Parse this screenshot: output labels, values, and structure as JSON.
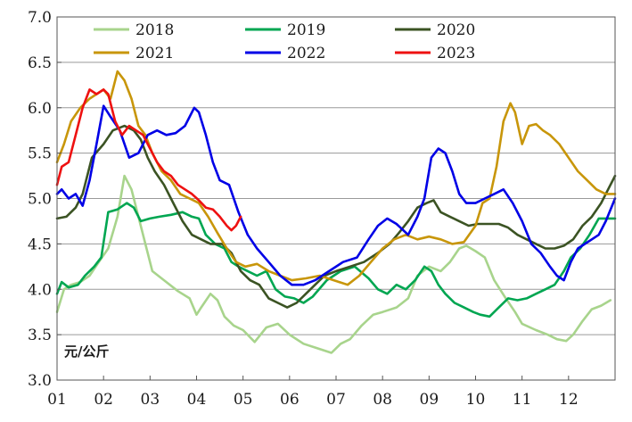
{
  "chart_data": {
    "type": "line",
    "title": "",
    "xlabel": "",
    "ylabel": "元/公斤",
    "unit_label": "元/公斤",
    "ylim": [
      3.0,
      7.0
    ],
    "xlim": [
      1,
      13
    ],
    "y_ticks": [
      "3.0",
      "3.5",
      "4.0",
      "4.5",
      "5.0",
      "5.5",
      "6.0",
      "6.5",
      "7.0"
    ],
    "y_tick_values": [
      3.0,
      3.5,
      4.0,
      4.5,
      5.0,
      5.5,
      6.0,
      6.5,
      7.0
    ],
    "x_ticks": [
      "01",
      "02",
      "03",
      "04",
      "05",
      "06",
      "07",
      "08",
      "09",
      "10",
      "11",
      "12"
    ],
    "x_tick_values": [
      1,
      2,
      3,
      4,
      5,
      6,
      7,
      8,
      9,
      10,
      11,
      12
    ],
    "grid": "horizontal",
    "legend_position": "top",
    "series": [
      {
        "name": "2018",
        "color": "#a8d48c",
        "x": [
          1.0,
          1.15,
          1.3,
          1.5,
          1.7,
          1.9,
          2.1,
          2.3,
          2.45,
          2.6,
          2.75,
          2.9,
          3.05,
          3.3,
          3.6,
          3.85,
          4.0,
          4.1,
          4.3,
          4.45,
          4.6,
          4.8,
          5.0,
          5.25,
          5.5,
          5.75,
          6.0,
          6.3,
          6.6,
          6.9,
          7.1,
          7.3,
          7.55,
          7.8,
          8.0,
          8.3,
          8.55,
          8.75,
          9.0,
          9.25,
          9.45,
          9.65,
          9.8,
          10.0,
          10.2,
          10.4,
          10.65,
          10.85,
          11.0,
          11.3,
          11.55,
          11.75,
          11.95,
          12.1,
          12.3,
          12.5,
          12.7,
          12.9
        ],
        "values": [
          3.75,
          4.0,
          4.05,
          4.08,
          4.15,
          4.3,
          4.45,
          4.8,
          5.25,
          5.1,
          4.8,
          4.5,
          4.2,
          4.1,
          3.98,
          3.9,
          3.72,
          3.8,
          3.95,
          3.88,
          3.7,
          3.6,
          3.55,
          3.42,
          3.58,
          3.62,
          3.5,
          3.4,
          3.35,
          3.3,
          3.4,
          3.45,
          3.6,
          3.72,
          3.75,
          3.8,
          3.9,
          4.15,
          4.25,
          4.2,
          4.3,
          4.45,
          4.48,
          4.42,
          4.35,
          4.1,
          3.9,
          3.75,
          3.62,
          3.55,
          3.5,
          3.45,
          3.43,
          3.5,
          3.65,
          3.78,
          3.82,
          3.88
        ]
      },
      {
        "name": "2019",
        "color": "#00a651",
        "x": [
          1.0,
          1.1,
          1.25,
          1.45,
          1.6,
          1.8,
          1.95,
          2.1,
          2.3,
          2.5,
          2.65,
          2.8,
          3.0,
          3.2,
          3.45,
          3.7,
          3.9,
          4.05,
          4.2,
          4.4,
          4.6,
          4.75,
          4.9,
          5.1,
          5.3,
          5.5,
          5.7,
          5.9,
          6.1,
          6.3,
          6.5,
          6.8,
          7.1,
          7.4,
          7.7,
          7.9,
          8.1,
          8.3,
          8.5,
          8.7,
          8.9,
          9.05,
          9.2,
          9.35,
          9.55,
          9.75,
          9.95,
          10.1,
          10.3,
          10.5,
          10.7,
          10.9,
          11.1,
          11.3,
          11.5,
          11.7,
          11.9,
          12.05,
          12.25,
          12.45,
          12.65,
          12.8,
          13.0
        ],
        "values": [
          3.95,
          4.08,
          4.02,
          4.05,
          4.15,
          4.25,
          4.35,
          4.85,
          4.88,
          4.95,
          4.9,
          4.75,
          4.78,
          4.8,
          4.82,
          4.85,
          4.8,
          4.78,
          4.6,
          4.5,
          4.45,
          4.3,
          4.25,
          4.2,
          4.15,
          4.2,
          4.0,
          3.92,
          3.9,
          3.85,
          3.92,
          4.1,
          4.2,
          4.25,
          4.12,
          4.0,
          3.95,
          4.05,
          4.0,
          4.1,
          4.25,
          4.2,
          4.05,
          3.95,
          3.85,
          3.8,
          3.75,
          3.72,
          3.7,
          3.8,
          3.9,
          3.88,
          3.9,
          3.95,
          4.0,
          4.05,
          4.2,
          4.35,
          4.45,
          4.6,
          4.78,
          4.78,
          4.78
        ]
      },
      {
        "name": "2020",
        "color": "#3b5323",
        "x": [
          1.0,
          1.2,
          1.4,
          1.55,
          1.75,
          2.0,
          2.2,
          2.45,
          2.65,
          2.8,
          2.95,
          3.1,
          3.3,
          3.5,
          3.7,
          3.9,
          4.1,
          4.3,
          4.55,
          4.75,
          4.95,
          5.15,
          5.35,
          5.55,
          5.75,
          5.95,
          6.15,
          6.35,
          6.55,
          6.75,
          7.0,
          7.3,
          7.6,
          7.9,
          8.15,
          8.35,
          8.55,
          8.75,
          8.95,
          9.1,
          9.25,
          9.45,
          9.65,
          9.85,
          10.05,
          10.25,
          10.5,
          10.7,
          10.9,
          11.1,
          11.3,
          11.5,
          11.7,
          11.9,
          12.1,
          12.3,
          12.5,
          12.7,
          12.85,
          13.0
        ],
        "values": [
          4.78,
          4.8,
          4.9,
          5.05,
          5.45,
          5.6,
          5.75,
          5.8,
          5.75,
          5.65,
          5.45,
          5.3,
          5.15,
          4.95,
          4.75,
          4.6,
          4.55,
          4.5,
          4.5,
          4.4,
          4.2,
          4.1,
          4.05,
          3.9,
          3.85,
          3.8,
          3.85,
          3.95,
          4.05,
          4.15,
          4.2,
          4.25,
          4.3,
          4.4,
          4.5,
          4.62,
          4.75,
          4.9,
          4.95,
          4.98,
          4.85,
          4.8,
          4.75,
          4.7,
          4.72,
          4.72,
          4.72,
          4.68,
          4.6,
          4.55,
          4.5,
          4.45,
          4.45,
          4.48,
          4.55,
          4.7,
          4.8,
          4.95,
          5.1,
          5.25
        ]
      },
      {
        "name": "2021",
        "color": "#c8960a",
        "x": [
          1.0,
          1.15,
          1.3,
          1.5,
          1.7,
          1.85,
          2.0,
          2.15,
          2.3,
          2.45,
          2.6,
          2.75,
          2.9,
          3.05,
          3.25,
          3.45,
          3.65,
          3.85,
          4.05,
          4.25,
          4.45,
          4.65,
          4.85,
          5.05,
          5.3,
          5.55,
          5.8,
          6.05,
          6.35,
          6.65,
          6.95,
          7.25,
          7.5,
          7.75,
          8.0,
          8.25,
          8.5,
          8.75,
          9.0,
          9.25,
          9.5,
          9.75,
          10.0,
          10.15,
          10.3,
          10.45,
          10.6,
          10.75,
          10.85,
          11.0,
          11.15,
          11.3,
          11.45,
          11.6,
          11.8,
          12.0,
          12.2,
          12.4,
          12.6,
          12.8,
          13.0
        ],
        "values": [
          5.4,
          5.6,
          5.85,
          6.0,
          6.1,
          6.15,
          6.2,
          6.1,
          6.4,
          6.3,
          6.1,
          5.8,
          5.7,
          5.5,
          5.3,
          5.2,
          5.05,
          5.0,
          4.95,
          4.8,
          4.62,
          4.45,
          4.3,
          4.25,
          4.28,
          4.2,
          4.15,
          4.1,
          4.12,
          4.15,
          4.1,
          4.05,
          4.15,
          4.3,
          4.45,
          4.55,
          4.6,
          4.55,
          4.58,
          4.55,
          4.5,
          4.52,
          4.7,
          4.95,
          5.0,
          5.35,
          5.85,
          6.05,
          5.95,
          5.6,
          5.8,
          5.82,
          5.75,
          5.7,
          5.6,
          5.45,
          5.3,
          5.2,
          5.1,
          5.05,
          5.05
        ]
      },
      {
        "name": "2022",
        "color": "#0000e6",
        "x": [
          1.0,
          1.1,
          1.25,
          1.4,
          1.55,
          1.7,
          1.85,
          2.0,
          2.15,
          2.35,
          2.55,
          2.75,
          2.95,
          3.15,
          3.35,
          3.55,
          3.75,
          3.95,
          4.05,
          4.2,
          4.35,
          4.5,
          4.7,
          4.9,
          5.1,
          5.3,
          5.55,
          5.8,
          6.05,
          6.3,
          6.55,
          6.85,
          7.15,
          7.45,
          7.7,
          7.9,
          8.1,
          8.3,
          8.55,
          8.75,
          8.9,
          9.05,
          9.2,
          9.35,
          9.5,
          9.65,
          9.8,
          10.0,
          10.2,
          10.4,
          10.6,
          10.8,
          11.0,
          11.2,
          11.4,
          11.6,
          11.75,
          11.9,
          12.05,
          12.2,
          12.35,
          12.5,
          12.65,
          12.8,
          13.0
        ],
        "values": [
          5.05,
          5.1,
          5.0,
          5.05,
          4.92,
          5.2,
          5.6,
          6.02,
          5.9,
          5.75,
          5.45,
          5.5,
          5.7,
          5.75,
          5.7,
          5.72,
          5.8,
          6.0,
          5.95,
          5.7,
          5.4,
          5.2,
          5.15,
          4.85,
          4.6,
          4.45,
          4.3,
          4.15,
          4.05,
          4.05,
          4.1,
          4.2,
          4.3,
          4.35,
          4.55,
          4.7,
          4.78,
          4.72,
          4.6,
          4.8,
          5.0,
          5.45,
          5.55,
          5.5,
          5.3,
          5.05,
          4.95,
          4.95,
          5.0,
          5.05,
          5.1,
          4.95,
          4.75,
          4.5,
          4.4,
          4.25,
          4.15,
          4.1,
          4.3,
          4.45,
          4.5,
          4.55,
          4.6,
          4.75,
          5.0
        ]
      },
      {
        "name": "2023",
        "color": "#ee1111",
        "x": [
          1.0,
          1.1,
          1.25,
          1.4,
          1.55,
          1.7,
          1.85,
          2.0,
          2.1,
          2.25,
          2.4,
          2.55,
          2.7,
          2.85,
          3.0,
          3.15,
          3.3,
          3.45,
          3.6,
          3.75,
          3.9,
          4.05,
          4.2,
          4.35,
          4.5,
          4.65,
          4.75,
          4.85,
          4.95
        ],
        "values": [
          5.15,
          5.35,
          5.4,
          5.7,
          6.0,
          6.2,
          6.15,
          6.2,
          6.15,
          5.85,
          5.7,
          5.8,
          5.75,
          5.7,
          5.55,
          5.4,
          5.3,
          5.25,
          5.15,
          5.1,
          5.05,
          4.98,
          4.9,
          4.88,
          4.8,
          4.7,
          4.65,
          4.7,
          4.8
        ]
      }
    ]
  }
}
